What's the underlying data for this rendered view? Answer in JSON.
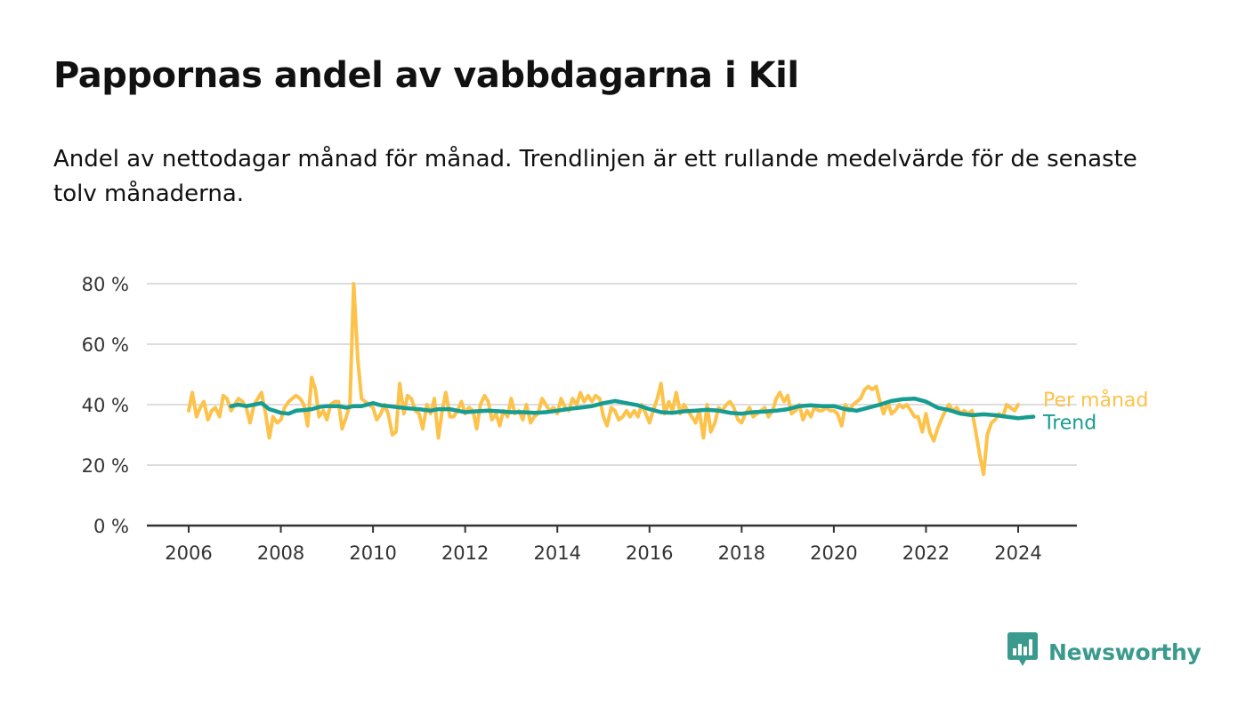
{
  "title": "Pappornas andel av vabbdagarna i Kil",
  "subtitle": "Andel av nettodagar månad för månad. Trendlinjen är ett rullande medelvärde för de senaste tolv månaderna.",
  "brand": {
    "name": "Newsworthy",
    "icon": "newsworthy-logo-icon",
    "color": "#3a9a8e"
  },
  "chart_data": {
    "type": "line",
    "title": "Pappornas andel av vabbdagarna i Kil",
    "ylim": [
      0,
      80
    ],
    "yticks": [
      0,
      20,
      40,
      60,
      80
    ],
    "ytick_labels": [
      "0 %",
      "20 %",
      "40 %",
      "60 %",
      "80 %"
    ],
    "xlim": [
      2005.8,
      2025.3
    ],
    "xticks": [
      2006,
      2008,
      2010,
      2012,
      2014,
      2016,
      2018,
      2020,
      2022,
      2024
    ],
    "xtick_labels": [
      "2006",
      "2008",
      "2010",
      "2012",
      "2014",
      "2016",
      "2018",
      "2020",
      "2022",
      "2024"
    ],
    "grid": true,
    "legend": "direct labels at right end of lines",
    "series": [
      {
        "name": "Per månad",
        "color": "#fdc24a",
        "points": [
          [
            2006.0,
            38
          ],
          [
            2006.08,
            44
          ],
          [
            2006.17,
            36
          ],
          [
            2006.25,
            39
          ],
          [
            2006.33,
            41
          ],
          [
            2006.42,
            35
          ],
          [
            2006.5,
            38
          ],
          [
            2006.58,
            39
          ],
          [
            2006.67,
            36
          ],
          [
            2006.75,
            43
          ],
          [
            2006.83,
            42
          ],
          [
            2006.92,
            38
          ],
          [
            2007.0,
            40
          ],
          [
            2007.08,
            42
          ],
          [
            2007.17,
            41
          ],
          [
            2007.25,
            39
          ],
          [
            2007.33,
            34
          ],
          [
            2007.42,
            40
          ],
          [
            2007.5,
            42
          ],
          [
            2007.58,
            44
          ],
          [
            2007.67,
            37
          ],
          [
            2007.75,
            29
          ],
          [
            2007.83,
            36
          ],
          [
            2007.92,
            34
          ],
          [
            2008.0,
            35
          ],
          [
            2008.08,
            39
          ],
          [
            2008.17,
            41
          ],
          [
            2008.25,
            42
          ],
          [
            2008.33,
            43
          ],
          [
            2008.42,
            42
          ],
          [
            2008.5,
            40
          ],
          [
            2008.58,
            33
          ],
          [
            2008.67,
            49
          ],
          [
            2008.75,
            45
          ],
          [
            2008.83,
            36
          ],
          [
            2008.92,
            38
          ],
          [
            2009.0,
            35
          ],
          [
            2009.08,
            40
          ],
          [
            2009.17,
            41
          ],
          [
            2009.25,
            41
          ],
          [
            2009.33,
            32
          ],
          [
            2009.42,
            36
          ],
          [
            2009.5,
            40
          ],
          [
            2009.58,
            80
          ],
          [
            2009.67,
            55
          ],
          [
            2009.75,
            42
          ],
          [
            2009.83,
            41
          ],
          [
            2009.92,
            40
          ],
          [
            2010.0,
            39
          ],
          [
            2010.08,
            35
          ],
          [
            2010.17,
            37
          ],
          [
            2010.25,
            40
          ],
          [
            2010.33,
            37
          ],
          [
            2010.42,
            30
          ],
          [
            2010.5,
            31
          ],
          [
            2010.58,
            47
          ],
          [
            2010.67,
            37
          ],
          [
            2010.75,
            43
          ],
          [
            2010.83,
            42
          ],
          [
            2010.92,
            38
          ],
          [
            2011.0,
            37
          ],
          [
            2011.08,
            32
          ],
          [
            2011.17,
            40
          ],
          [
            2011.25,
            37
          ],
          [
            2011.33,
            42
          ],
          [
            2011.42,
            29
          ],
          [
            2011.5,
            38
          ],
          [
            2011.58,
            44
          ],
          [
            2011.67,
            36
          ],
          [
            2011.75,
            36
          ],
          [
            2011.83,
            38
          ],
          [
            2011.92,
            41
          ],
          [
            2012.0,
            37
          ],
          [
            2012.08,
            39
          ],
          [
            2012.17,
            38
          ],
          [
            2012.25,
            32
          ],
          [
            2012.33,
            40
          ],
          [
            2012.42,
            43
          ],
          [
            2012.5,
            41
          ],
          [
            2012.58,
            35
          ],
          [
            2012.67,
            37
          ],
          [
            2012.75,
            33
          ],
          [
            2012.83,
            38
          ],
          [
            2012.92,
            36
          ],
          [
            2013.0,
            42
          ],
          [
            2013.08,
            37
          ],
          [
            2013.17,
            38
          ],
          [
            2013.25,
            35
          ],
          [
            2013.33,
            40
          ],
          [
            2013.42,
            34
          ],
          [
            2013.5,
            36
          ],
          [
            2013.58,
            37
          ],
          [
            2013.67,
            42
          ],
          [
            2013.75,
            40
          ],
          [
            2013.83,
            38
          ],
          [
            2013.92,
            39
          ],
          [
            2014.0,
            37
          ],
          [
            2014.08,
            42
          ],
          [
            2014.17,
            39
          ],
          [
            2014.25,
            38
          ],
          [
            2014.33,
            42
          ],
          [
            2014.42,
            40
          ],
          [
            2014.5,
            44
          ],
          [
            2014.58,
            41
          ],
          [
            2014.67,
            43
          ],
          [
            2014.75,
            41
          ],
          [
            2014.83,
            43
          ],
          [
            2014.92,
            42
          ],
          [
            2015.0,
            36
          ],
          [
            2015.08,
            33
          ],
          [
            2015.17,
            39
          ],
          [
            2015.25,
            38
          ],
          [
            2015.33,
            35
          ],
          [
            2015.42,
            36
          ],
          [
            2015.5,
            38
          ],
          [
            2015.58,
            36
          ],
          [
            2015.67,
            38
          ],
          [
            2015.75,
            36
          ],
          [
            2015.83,
            40
          ],
          [
            2015.92,
            37
          ],
          [
            2016.0,
            34
          ],
          [
            2016.08,
            38
          ],
          [
            2016.17,
            42
          ],
          [
            2016.25,
            47
          ],
          [
            2016.33,
            37
          ],
          [
            2016.42,
            41
          ],
          [
            2016.5,
            38
          ],
          [
            2016.58,
            44
          ],
          [
            2016.67,
            37
          ],
          [
            2016.75,
            40
          ],
          [
            2016.83,
            38
          ],
          [
            2016.92,
            36
          ],
          [
            2017.0,
            34
          ],
          [
            2017.08,
            38
          ],
          [
            2017.17,
            29
          ],
          [
            2017.25,
            40
          ],
          [
            2017.33,
            31
          ],
          [
            2017.42,
            34
          ],
          [
            2017.5,
            39
          ],
          [
            2017.58,
            38
          ],
          [
            2017.67,
            40
          ],
          [
            2017.75,
            41
          ],
          [
            2017.83,
            39
          ],
          [
            2017.92,
            35
          ],
          [
            2018.0,
            34
          ],
          [
            2018.08,
            37
          ],
          [
            2018.17,
            39
          ],
          [
            2018.25,
            36
          ],
          [
            2018.33,
            37
          ],
          [
            2018.42,
            38
          ],
          [
            2018.5,
            39
          ],
          [
            2018.58,
            36
          ],
          [
            2018.67,
            38
          ],
          [
            2018.75,
            42
          ],
          [
            2018.83,
            44
          ],
          [
            2018.92,
            41
          ],
          [
            2019.0,
            43
          ],
          [
            2019.08,
            37
          ],
          [
            2019.17,
            38
          ],
          [
            2019.25,
            40
          ],
          [
            2019.33,
            35
          ],
          [
            2019.42,
            38
          ],
          [
            2019.5,
            36
          ],
          [
            2019.58,
            39
          ],
          [
            2019.67,
            38
          ],
          [
            2019.75,
            38
          ],
          [
            2019.83,
            39
          ],
          [
            2019.92,
            38
          ],
          [
            2020.0,
            38
          ],
          [
            2020.08,
            37
          ],
          [
            2020.17,
            33
          ],
          [
            2020.25,
            40
          ],
          [
            2020.33,
            38
          ],
          [
            2020.42,
            40
          ],
          [
            2020.5,
            41
          ],
          [
            2020.58,
            42
          ],
          [
            2020.67,
            45
          ],
          [
            2020.75,
            46
          ],
          [
            2020.83,
            45
          ],
          [
            2020.92,
            46
          ],
          [
            2021.0,
            41
          ],
          [
            2021.08,
            37
          ],
          [
            2021.17,
            41
          ],
          [
            2021.25,
            37
          ],
          [
            2021.33,
            38
          ],
          [
            2021.42,
            40
          ],
          [
            2021.5,
            39
          ],
          [
            2021.58,
            40
          ],
          [
            2021.67,
            38
          ],
          [
            2021.75,
            36
          ],
          [
            2021.83,
            36
          ],
          [
            2021.92,
            31
          ],
          [
            2022.0,
            37
          ],
          [
            2022.08,
            31
          ],
          [
            2022.17,
            28
          ],
          [
            2022.25,
            32
          ],
          [
            2022.33,
            35
          ],
          [
            2022.42,
            38
          ],
          [
            2022.5,
            40
          ],
          [
            2022.58,
            38
          ],
          [
            2022.67,
            39
          ],
          [
            2022.75,
            37
          ],
          [
            2022.83,
            38
          ],
          [
            2022.92,
            37
          ],
          [
            2023.0,
            38
          ],
          [
            2023.08,
            31
          ],
          [
            2023.17,
            23
          ],
          [
            2023.25,
            17
          ],
          [
            2023.33,
            30
          ],
          [
            2023.42,
            34
          ],
          [
            2023.5,
            35
          ],
          [
            2023.58,
            37
          ],
          [
            2023.67,
            36
          ],
          [
            2023.75,
            40
          ],
          [
            2023.83,
            39
          ],
          [
            2023.92,
            38
          ],
          [
            2024.0,
            40
          ]
        ]
      },
      {
        "name": "Trend",
        "color": "#169c91",
        "points": [
          [
            2006.92,
            39.5
          ],
          [
            2007.08,
            40
          ],
          [
            2007.25,
            39.5
          ],
          [
            2007.42,
            40
          ],
          [
            2007.58,
            40.5
          ],
          [
            2007.75,
            38.5
          ],
          [
            2008.0,
            37.3
          ],
          [
            2008.17,
            37
          ],
          [
            2008.33,
            38
          ],
          [
            2008.5,
            38.2
          ],
          [
            2008.67,
            38.5
          ],
          [
            2008.83,
            39.2
          ],
          [
            2009.0,
            39.5
          ],
          [
            2009.25,
            39.5
          ],
          [
            2009.42,
            39
          ],
          [
            2009.58,
            39.5
          ],
          [
            2009.75,
            39.5
          ],
          [
            2010.0,
            40.5
          ],
          [
            2010.17,
            39.8
          ],
          [
            2010.33,
            39.5
          ],
          [
            2010.5,
            39.2
          ],
          [
            2010.75,
            38.8
          ],
          [
            2011.0,
            38.5
          ],
          [
            2011.25,
            38
          ],
          [
            2011.42,
            38.5
          ],
          [
            2011.67,
            38.5
          ],
          [
            2011.83,
            38
          ],
          [
            2012.0,
            37.5
          ],
          [
            2012.25,
            37.8
          ],
          [
            2012.5,
            38
          ],
          [
            2012.75,
            37.8
          ],
          [
            2013.0,
            37.5
          ],
          [
            2013.25,
            37.5
          ],
          [
            2013.5,
            37.3
          ],
          [
            2013.75,
            37.5
          ],
          [
            2014.0,
            38
          ],
          [
            2014.25,
            38.6
          ],
          [
            2014.5,
            39
          ],
          [
            2014.75,
            39.5
          ],
          [
            2015.0,
            40.5
          ],
          [
            2015.25,
            41.2
          ],
          [
            2015.5,
            40.5
          ],
          [
            2015.75,
            39.8
          ],
          [
            2016.0,
            38.5
          ],
          [
            2016.25,
            37.5
          ],
          [
            2016.5,
            37.3
          ],
          [
            2016.75,
            37.8
          ],
          [
            2017.0,
            38
          ],
          [
            2017.25,
            38.3
          ],
          [
            2017.5,
            38
          ],
          [
            2017.75,
            37.3
          ],
          [
            2018.0,
            37
          ],
          [
            2018.25,
            37.5
          ],
          [
            2018.5,
            37.7
          ],
          [
            2018.75,
            38
          ],
          [
            2019.0,
            38.5
          ],
          [
            2019.25,
            39.5
          ],
          [
            2019.5,
            39.8
          ],
          [
            2019.75,
            39.5
          ],
          [
            2020.0,
            39.5
          ],
          [
            2020.25,
            38.5
          ],
          [
            2020.5,
            38
          ],
          [
            2020.75,
            39
          ],
          [
            2021.0,
            40
          ],
          [
            2021.25,
            41.2
          ],
          [
            2021.5,
            41.8
          ],
          [
            2021.75,
            42
          ],
          [
            2022.0,
            41
          ],
          [
            2022.25,
            39
          ],
          [
            2022.5,
            38.2
          ],
          [
            2022.75,
            37
          ],
          [
            2023.0,
            36.5
          ],
          [
            2023.25,
            36.8
          ],
          [
            2023.5,
            36.5
          ],
          [
            2023.75,
            36
          ],
          [
            2024.0,
            35.5
          ],
          [
            2024.17,
            35.8
          ],
          [
            2024.33,
            36
          ]
        ]
      }
    ]
  }
}
